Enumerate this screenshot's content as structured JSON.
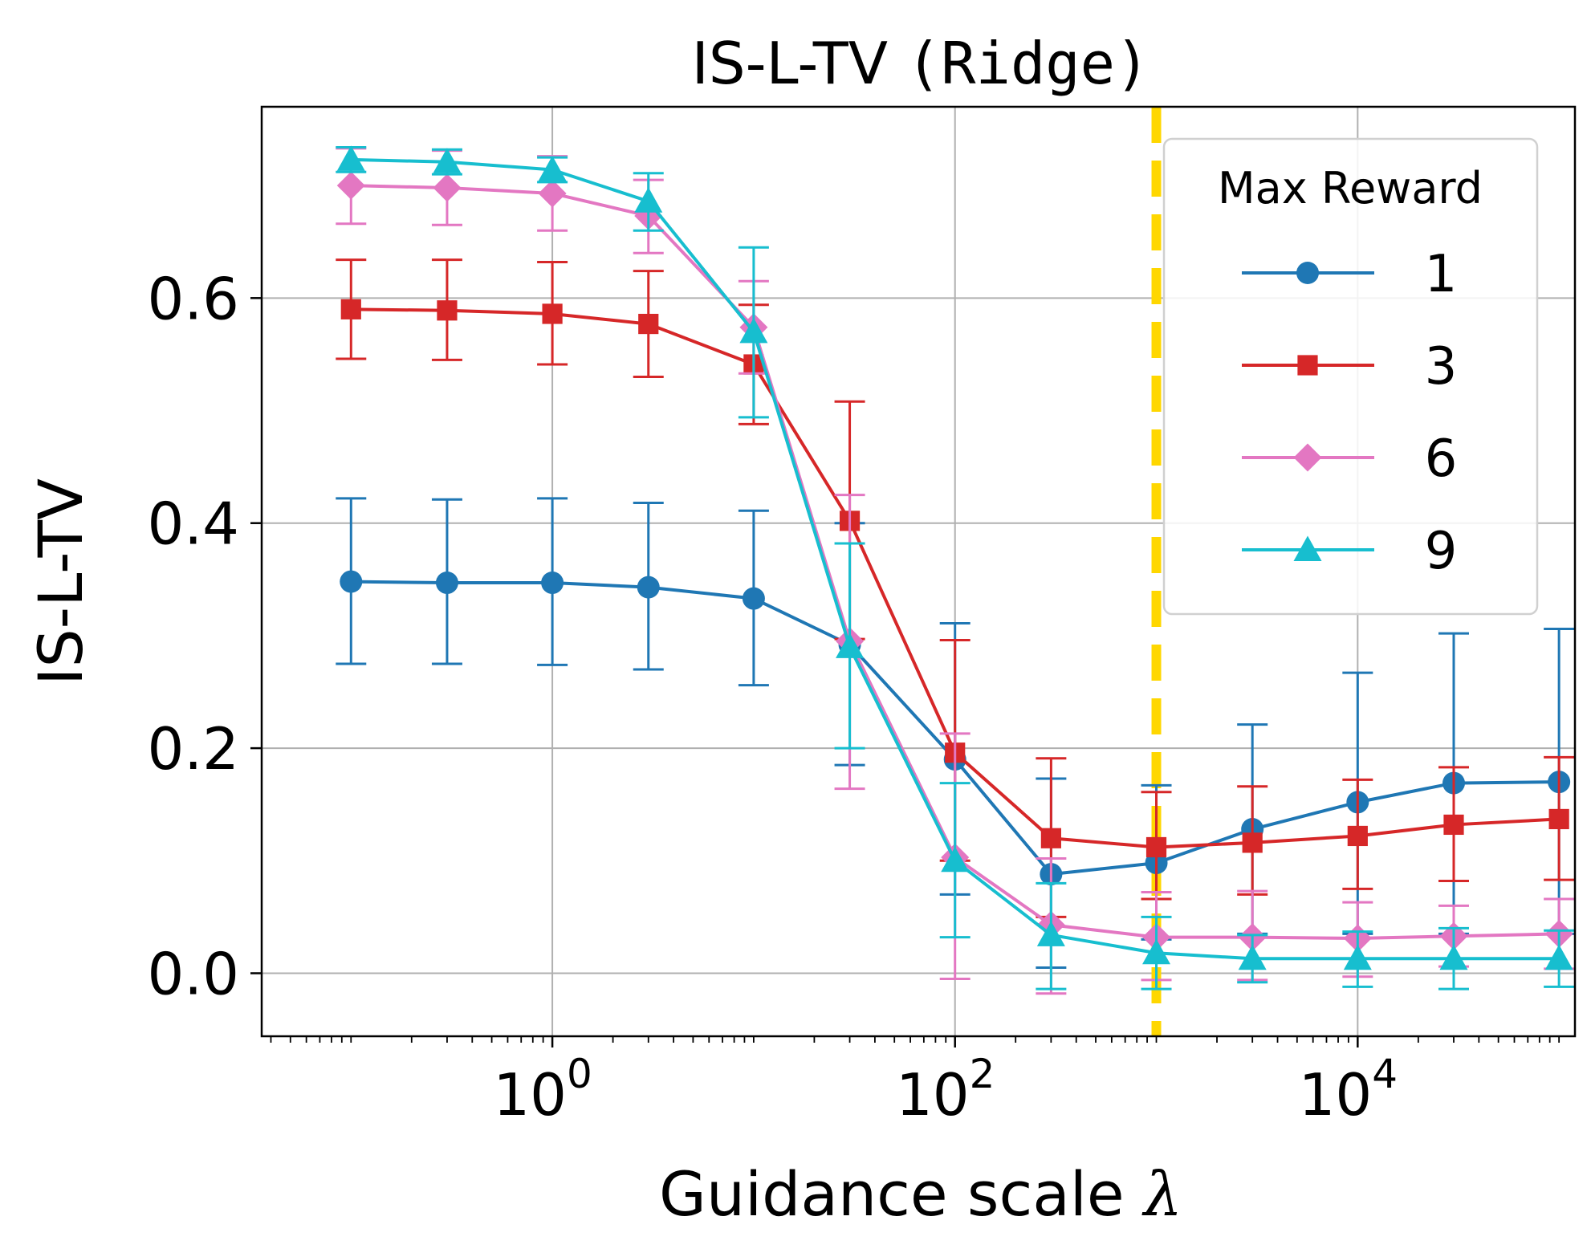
{
  "chart_data": {
    "type": "line",
    "title": "IS-L-TV",
    "title_suffix": "(Ridge)",
    "xlabel": "Guidance scale",
    "xlabel_symbol": "λ",
    "ylabel": "IS-L-TV",
    "xscale": "log",
    "xlim": [
      0.036,
      120000
    ],
    "ylim": [
      -0.056,
      0.77
    ],
    "x": [
      0.1,
      0.3,
      1,
      3,
      10,
      30,
      100,
      300,
      1000,
      3000,
      10000,
      30000,
      100000
    ],
    "x_ticks": [
      {
        "value": 1,
        "base": "10",
        "exp": "0"
      },
      {
        "value": 100,
        "base": "10",
        "exp": "2"
      },
      {
        "value": 10000,
        "base": "10",
        "exp": "4"
      }
    ],
    "y_ticks": [
      {
        "value": 0.0,
        "label": "0.0"
      },
      {
        "value": 0.2,
        "label": "0.2"
      },
      {
        "value": 0.4,
        "label": "0.4"
      },
      {
        "value": 0.6,
        "label": "0.6"
      }
    ],
    "grid": true,
    "vline": {
      "x": 1000,
      "color": "#ffd700",
      "style": "dashed"
    },
    "legend": {
      "title": "Max Reward",
      "location": "upper right"
    },
    "series": [
      {
        "name": "1",
        "color": "#1f77b4",
        "marker": "circle",
        "values": [
          0.348,
          0.347,
          0.347,
          0.343,
          0.333,
          0.292,
          0.19,
          0.088,
          0.098,
          0.128,
          0.152,
          0.169,
          0.17
        ],
        "err_low": [
          0.275,
          0.275,
          0.274,
          0.27,
          0.256,
          0.185,
          0.07,
          0.005,
          0.03,
          0.035,
          0.035,
          0.035,
          0.035
        ],
        "err_high": [
          0.422,
          0.421,
          0.422,
          0.418,
          0.411,
          0.4,
          0.311,
          0.173,
          0.167,
          0.221,
          0.267,
          0.302,
          0.306
        ]
      },
      {
        "name": "3",
        "color": "#d62728",
        "marker": "square",
        "values": [
          0.59,
          0.589,
          0.586,
          0.577,
          0.541,
          0.402,
          0.196,
          0.12,
          0.112,
          0.116,
          0.122,
          0.132,
          0.137
        ],
        "err_low": [
          0.546,
          0.545,
          0.541,
          0.53,
          0.488,
          0.297,
          0.1,
          0.05,
          0.066,
          0.07,
          0.075,
          0.082,
          0.083
        ],
        "err_high": [
          0.634,
          0.634,
          0.632,
          0.624,
          0.594,
          0.508,
          0.296,
          0.191,
          0.161,
          0.166,
          0.172,
          0.183,
          0.192
        ]
      },
      {
        "name": "6",
        "color": "#e377c2",
        "marker": "diamond",
        "values": [
          0.7,
          0.698,
          0.693,
          0.673,
          0.574,
          0.295,
          0.103,
          0.043,
          0.032,
          0.032,
          0.031,
          0.033,
          0.035
        ],
        "err_low": [
          0.666,
          0.665,
          0.66,
          0.64,
          0.533,
          0.164,
          -0.005,
          -0.018,
          -0.006,
          -0.006,
          -0.003,
          0.006,
          0.004
        ],
        "err_high": [
          0.733,
          0.731,
          0.726,
          0.705,
          0.615,
          0.425,
          0.213,
          0.102,
          0.072,
          0.073,
          0.063,
          0.06,
          0.066
        ]
      },
      {
        "name": "9",
        "color": "#17becf",
        "marker": "triangle",
        "values": [
          0.723,
          0.721,
          0.714,
          0.686,
          0.57,
          0.29,
          0.1,
          0.034,
          0.018,
          0.013,
          0.013,
          0.013,
          0.013
        ],
        "err_low": [
          0.712,
          0.71,
          0.703,
          0.66,
          0.494,
          0.2,
          0.032,
          -0.014,
          -0.014,
          -0.008,
          -0.012,
          -0.014,
          -0.012
        ],
        "err_high": [
          0.734,
          0.732,
          0.725,
          0.711,
          0.645,
          0.382,
          0.169,
          0.08,
          0.05,
          0.034,
          0.037,
          0.04,
          0.038
        ]
      }
    ]
  }
}
